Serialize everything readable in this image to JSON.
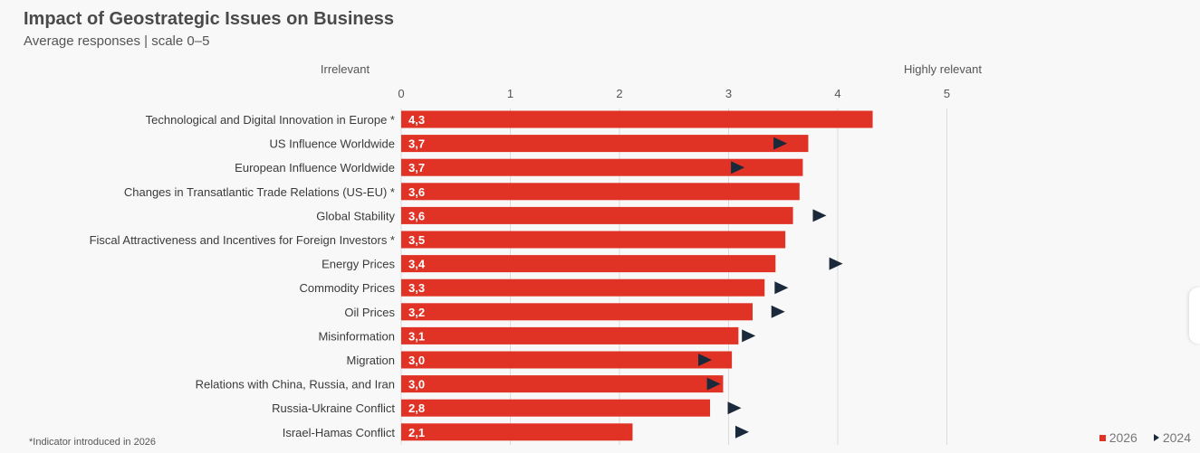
{
  "title": "Impact of Geostrategic Issues on Business",
  "subtitle": "Average responses | scale 0–5",
  "footnote": "*Indicator introduced in 2026",
  "colors": {
    "bar_2026": "#e03326",
    "marker_2024": "#1b2a3a",
    "grid": "#dcdcdc"
  },
  "chart_data": {
    "type": "bar",
    "orientation": "horizontal",
    "scale_labels": {
      "low": "Irrelevant",
      "high": "Highly relevant"
    },
    "xlim": [
      0,
      5
    ],
    "xticks": [
      0,
      1,
      2,
      3,
      4,
      5
    ],
    "grid": true,
    "legend_position": "bottom-right",
    "categories": [
      "Technological and Digital Innovation in Europe *",
      "US Influence Worldwide",
      "European Influence Worldwide",
      "Changes in Transatlantic Trade Relations (US-EU) *",
      "Global Stability",
      "Fiscal Attractiveness and Incentives for Foreign Investors *",
      "Energy Prices",
      "Commodity Prices",
      "Oil Prices",
      "Misinformation",
      "Migration",
      "Relations with China, Russia, and Iran",
      "Russia-Ukraine Conflict",
      "Israel-Hamas Conflict"
    ],
    "series": [
      {
        "name": "2026",
        "type": "bar",
        "values": [
          4.32,
          3.73,
          3.68,
          3.65,
          3.59,
          3.52,
          3.43,
          3.33,
          3.22,
          3.09,
          3.03,
          2.95,
          2.83,
          2.12
        ],
        "labels": [
          "4,3",
          "3,7",
          "3,7",
          "3,6",
          "3,6",
          "3,5",
          "3,4",
          "3,3",
          "3,2",
          "3,1",
          "3,0",
          "3,0",
          "2,8",
          "2,1"
        ]
      },
      {
        "name": "2024",
        "type": "marker",
        "values": [
          null,
          3.47,
          3.08,
          null,
          3.83,
          null,
          3.98,
          3.48,
          3.45,
          3.18,
          2.78,
          2.86,
          3.05,
          3.12
        ]
      }
    ]
  }
}
